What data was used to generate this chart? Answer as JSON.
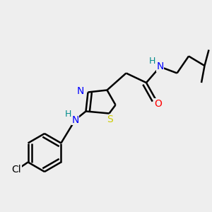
{
  "background_color": "#eeeeee",
  "atom_colors": {
    "C": "#000000",
    "N": "#0000ff",
    "O": "#ff0000",
    "S": "#cccc00",
    "Cl": "#000000",
    "H": "#008b8b"
  },
  "bond_color": "#000000",
  "bond_width": 1.8,
  "font_size_atom": 10,
  "figsize": [
    3.0,
    3.0
  ],
  "dpi": 100
}
